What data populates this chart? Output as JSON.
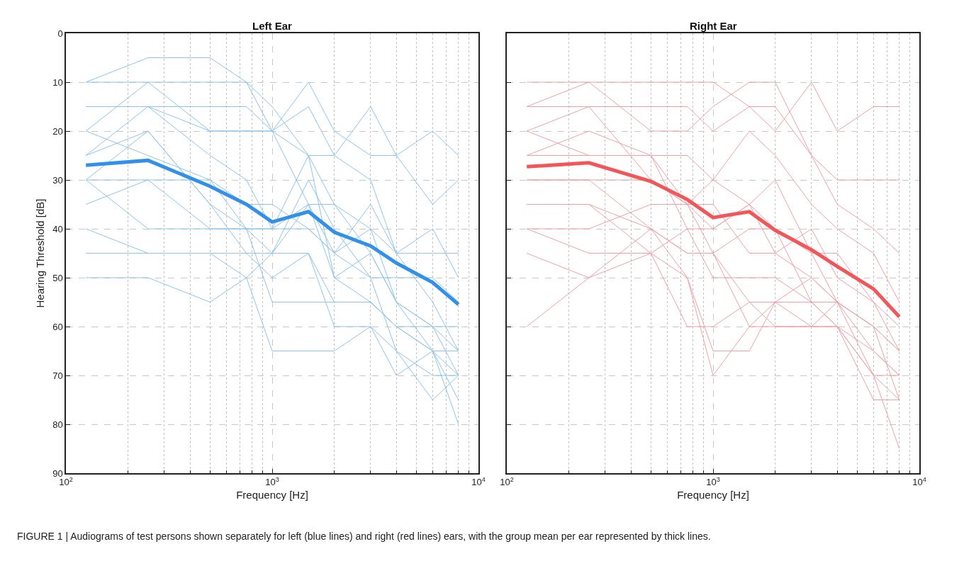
{
  "chart_data": [
    {
      "type": "line",
      "title": "Left Ear",
      "xlabel": "Frequency [Hz]",
      "ylabel": "Hearing Threshold [dB]",
      "log": "x",
      "grid": true,
      "marker": "none",
      "line_style": "solid",
      "xlim": [
        100,
        10000
      ],
      "xticks": [
        {
          "value": 100,
          "label": "10$^{2}$"
        },
        {
          "value": 1000,
          "label": "10$^{3}$"
        },
        {
          "value": 10000,
          "label": "10$^{4}$"
        }
      ],
      "ylim": [
        90,
        0
      ],
      "yticks": [
        0,
        10,
        20,
        30,
        40,
        50,
        60,
        70,
        80,
        90
      ],
      "x": [
        125,
        250,
        500,
        750,
        1000,
        1500,
        2000,
        3000,
        4000,
        6000,
        8000
      ],
      "series": [
        {
          "color": "#8cc4ec",
          "values": [
            10,
            5,
            5,
            10,
            20,
            10,
            20,
            25,
            25,
            20,
            25
          ]
        },
        {
          "color": "#8cc4ec",
          "values": [
            10,
            10,
            10,
            10,
            15,
            25,
            25,
            15,
            25,
            35,
            30
          ]
        },
        {
          "color": "#8cc4ec",
          "values": [
            15,
            15,
            20,
            20,
            20,
            15,
            25,
            30,
            45,
            45,
            45
          ]
        },
        {
          "color": "#8cc4ec",
          "values": [
            15,
            15,
            15,
            15,
            20,
            35,
            35,
            40,
            55,
            60,
            65
          ]
        },
        {
          "color": "#8cc4ec",
          "values": [
            20,
            10,
            20,
            20,
            20,
            25,
            35,
            45,
            55,
            65,
            70
          ]
        },
        {
          "color": "#8cc4ec",
          "values": [
            20,
            25,
            30,
            40,
            40,
            35,
            50,
            45,
            55,
            60,
            70
          ]
        },
        {
          "color": "#8cc4ec",
          "values": [
            25,
            15,
            25,
            30,
            40,
            25,
            50,
            55,
            60,
            65,
            75
          ]
        },
        {
          "color": "#8cc4ec",
          "values": [
            25,
            20,
            35,
            40,
            45,
            30,
            40,
            50,
            65,
            70,
            70
          ]
        },
        {
          "color": "#8cc4ec",
          "values": [
            30,
            30,
            30,
            35,
            35,
            40,
            45,
            40,
            45,
            40,
            50
          ]
        },
        {
          "color": "#8cc4ec",
          "values": [
            30,
            20,
            35,
            45,
            50,
            45,
            55,
            55,
            60,
            65,
            80
          ]
        },
        {
          "color": "#8cc4ec",
          "values": [
            35,
            30,
            40,
            40,
            55,
            55,
            55,
            55,
            60,
            60,
            60
          ]
        },
        {
          "color": "#8cc4ec",
          "values": [
            40,
            45,
            45,
            50,
            45,
            35,
            45,
            50,
            50,
            50,
            55
          ]
        },
        {
          "color": "#8cc4ec",
          "values": [
            45,
            45,
            45,
            45,
            45,
            45,
            60,
            60,
            65,
            75,
            70
          ]
        },
        {
          "color": "#8cc4ec",
          "values": [
            50,
            50,
            55,
            50,
            65,
            65,
            65,
            60,
            70,
            65,
            65
          ]
        },
        {
          "color": "#8cc4ec",
          "values": [
            30,
            40,
            40,
            40,
            40,
            40,
            45,
            35,
            45,
            55,
            65
          ]
        },
        {
          "color": "#3290e8",
          "values": [
            27,
            26,
            31.3,
            35,
            38.6,
            36.5,
            40.7,
            43.5,
            47,
            51,
            55.5
          ]
        }
      ],
      "annotations": [
        "FIGURE 1 | Audiograms of test persons shown separately for left (blue lines) and right (red lines) ears, with the group mean per ear represented by thick lines."
      ]
    },
    {
      "type": "line",
      "title": "Right Ear",
      "xlabel": "Frequency [Hz]",
      "log": "x",
      "grid": true,
      "marker": "none",
      "line_style": "solid",
      "tick_labels": "x",
      "xlim": [
        100,
        10000
      ],
      "xticks": [
        {
          "value": 100,
          "label": "10$^{2}$"
        },
        {
          "value": 1000,
          "label": "10$^{3}$"
        },
        {
          "value": 10000,
          "label": "10$^{4}$"
        }
      ],
      "ylim": [
        90,
        0
      ],
      "yticks": [
        0,
        10,
        20,
        30,
        40,
        50,
        60,
        70,
        80,
        90
      ],
      "x": [
        125,
        250,
        500,
        750,
        1000,
        1500,
        2000,
        3000,
        4000,
        6000,
        8000
      ],
      "series": [
        {
          "color": "#f0a0a4",
          "values": [
            10,
            10,
            10,
            10,
            10,
            15,
            20,
            10,
            20,
            15,
            15
          ]
        },
        {
          "color": "#f0a0a4",
          "values": [
            15,
            10,
            20,
            20,
            15,
            10,
            10,
            25,
            30,
            30,
            30
          ]
        },
        {
          "color": "#f0a0a4",
          "values": [
            15,
            15,
            15,
            15,
            20,
            15,
            15,
            25,
            35,
            40,
            45
          ]
        },
        {
          "color": "#f0a0a4",
          "values": [
            20,
            15,
            30,
            35,
            40,
            35,
            30,
            45,
            45,
            55,
            60
          ]
        },
        {
          "color": "#f0a0a4",
          "values": [
            25,
            25,
            25,
            25,
            30,
            20,
            25,
            35,
            40,
            45,
            55
          ]
        },
        {
          "color": "#f0a0a4",
          "values": [
            25,
            20,
            25,
            40,
            40,
            35,
            45,
            40,
            50,
            55,
            65
          ]
        },
        {
          "color": "#f0a0a4",
          "values": [
            30,
            30,
            30,
            35,
            35,
            45,
            45,
            50,
            55,
            60,
            65
          ]
        },
        {
          "color": "#f0a0a4",
          "values": [
            35,
            35,
            40,
            45,
            45,
            40,
            40,
            55,
            60,
            65,
            70
          ]
        },
        {
          "color": "#f0a0a4",
          "values": [
            40,
            40,
            35,
            35,
            30,
            35,
            40,
            45,
            55,
            60,
            75
          ]
        },
        {
          "color": "#f0a0a4",
          "values": [
            40,
            45,
            45,
            40,
            50,
            50,
            50,
            55,
            60,
            70,
            75
          ]
        },
        {
          "color": "#f0a0a4",
          "values": [
            45,
            50,
            40,
            45,
            45,
            55,
            55,
            55,
            55,
            70,
            85
          ]
        },
        {
          "color": "#f0a0a4",
          "values": [
            60,
            50,
            45,
            60,
            60,
            55,
            60,
            60,
            60,
            75,
            75
          ]
        },
        {
          "color": "#f0a0a4",
          "values": [
            20,
            25,
            25,
            35,
            45,
            60,
            60,
            60,
            55,
            60,
            65
          ]
        },
        {
          "color": "#f0a0a4",
          "values": [
            30,
            30,
            40,
            50,
            65,
            65,
            55,
            50,
            55,
            65,
            70
          ]
        },
        {
          "color": "#f0a0a4",
          "values": [
            35,
            35,
            45,
            50,
            70,
            60,
            55,
            60,
            60,
            70,
            70
          ]
        },
        {
          "color": "#f25658",
          "values": [
            27.3,
            26.5,
            30.3,
            34,
            37.7,
            36.5,
            40.3,
            44.3,
            47.7,
            52.3,
            58
          ]
        }
      ]
    }
  ]
}
